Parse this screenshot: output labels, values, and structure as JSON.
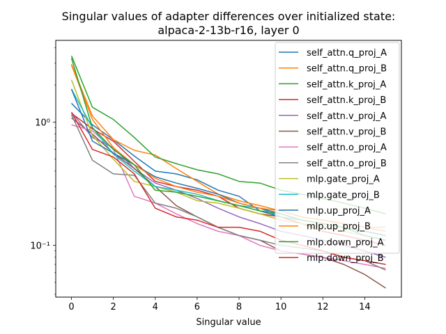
{
  "chart_data": {
    "type": "line",
    "title": "Singular values of adapter differences over initialized state:",
    "subtitle": "alpaca-2-13b-r16, layer 0",
    "xlabel": "Singular value",
    "ylabel": "",
    "xlim": [
      -0.75,
      15.75
    ],
    "ylim": [
      0.038,
      4.6
    ],
    "yscale": "log",
    "x_ticks": [
      0,
      2,
      4,
      6,
      8,
      10,
      12,
      14
    ],
    "x_tick_labels": [
      "0",
      "2",
      "4",
      "6",
      "8",
      "10",
      "12",
      "14"
    ],
    "y_ticks": [
      0.1,
      1
    ],
    "y_tick_labels": [
      "10⁻¹",
      "10⁰"
    ],
    "legend_position": "top-right",
    "x": [
      0,
      1,
      2,
      3,
      4,
      5,
      6,
      7,
      8,
      9,
      10,
      11,
      12,
      13,
      14,
      15
    ],
    "series": [
      {
        "name": "self_attn.q_proj_A",
        "color": "#1f77b4",
        "values": [
          1.42,
          0.95,
          0.72,
          0.53,
          0.4,
          0.38,
          0.34,
          0.28,
          0.25,
          0.19,
          0.17,
          0.16,
          0.15,
          0.14,
          0.13,
          0.12
        ]
      },
      {
        "name": "self_attn.q_proj_B",
        "color": "#ff7f0e",
        "values": [
          2.95,
          1.12,
          0.72,
          0.59,
          0.54,
          0.42,
          0.33,
          0.26,
          0.23,
          0.21,
          0.19,
          0.17,
          0.16,
          0.15,
          0.14,
          0.14
        ]
      },
      {
        "name": "self_attn.k_proj_A",
        "color": "#2ca02c",
        "values": [
          3.45,
          1.32,
          1.05,
          0.75,
          0.52,
          0.46,
          0.41,
          0.38,
          0.33,
          0.32,
          0.28,
          0.26,
          0.24,
          0.22,
          0.2,
          0.18
        ]
      },
      {
        "name": "self_attn.k_proj_B",
        "color": "#d62728",
        "values": [
          1.18,
          0.88,
          0.7,
          0.48,
          0.33,
          0.3,
          0.28,
          0.25,
          0.2,
          0.18,
          0.17,
          0.15,
          0.13,
          0.12,
          0.11,
          0.1
        ]
      },
      {
        "name": "self_attn.v_proj_A",
        "color": "#9467bd",
        "values": [
          1.2,
          0.75,
          0.62,
          0.42,
          0.32,
          0.28,
          0.24,
          0.2,
          0.17,
          0.15,
          0.13,
          0.12,
          0.11,
          0.1,
          0.09,
          0.08
        ]
      },
      {
        "name": "self_attn.v_proj_B",
        "color": "#8c564b",
        "values": [
          1.08,
          0.8,
          0.56,
          0.42,
          0.3,
          0.21,
          0.17,
          0.14,
          0.12,
          0.11,
          0.09,
          0.085,
          0.08,
          0.07,
          0.058,
          0.045
        ]
      },
      {
        "name": "self_attn.o_proj_A",
        "color": "#e377c2",
        "values": [
          0.95,
          0.85,
          0.6,
          0.25,
          0.22,
          0.18,
          0.15,
          0.13,
          0.12,
          0.1,
          0.09,
          0.085,
          0.08,
          0.075,
          0.07,
          0.065
        ]
      },
      {
        "name": "self_attn.o_proj_B",
        "color": "#7f7f7f",
        "values": [
          1.15,
          0.49,
          0.38,
          0.37,
          0.22,
          0.2,
          0.17,
          0.14,
          0.12,
          0.11,
          0.1,
          0.095,
          0.09,
          0.08,
          0.075,
          0.063
        ]
      },
      {
        "name": "mlp.gate_proj_A",
        "color": "#bcbd22",
        "values": [
          2.2,
          0.78,
          0.5,
          0.33,
          0.3,
          0.27,
          0.23,
          0.22,
          0.2,
          0.18,
          0.16,
          0.15,
          0.14,
          0.13,
          0.12,
          0.11
        ]
      },
      {
        "name": "mlp.gate_proj_B",
        "color": "#17becf",
        "values": [
          1.85,
          0.9,
          0.55,
          0.4,
          0.3,
          0.28,
          0.26,
          0.23,
          0.21,
          0.2,
          0.17,
          0.16,
          0.15,
          0.14,
          0.12,
          0.11
        ]
      },
      {
        "name": "mlp.up_proj_A",
        "color": "#1f77b4",
        "values": [
          1.85,
          0.7,
          0.56,
          0.45,
          0.36,
          0.32,
          0.29,
          0.26,
          0.22,
          0.2,
          0.18,
          0.16,
          0.15,
          0.14,
          0.13,
          0.12
        ]
      },
      {
        "name": "mlp.up_proj_B",
        "color": "#ff7f0e",
        "values": [
          2.9,
          1.05,
          0.62,
          0.45,
          0.35,
          0.3,
          0.27,
          0.25,
          0.22,
          0.2,
          0.19,
          0.17,
          0.16,
          0.15,
          0.14,
          0.13
        ]
      },
      {
        "name": "mlp.down_proj_A",
        "color": "#2ca02c",
        "values": [
          3.3,
          0.9,
          0.6,
          0.45,
          0.28,
          0.27,
          0.25,
          0.23,
          0.21,
          0.19,
          0.18,
          0.16,
          0.15,
          0.14,
          0.12,
          0.11
        ]
      },
      {
        "name": "mlp.down_proj_B",
        "color": "#d62728",
        "values": [
          1.2,
          0.6,
          0.52,
          0.38,
          0.2,
          0.17,
          0.16,
          0.14,
          0.14,
          0.13,
          0.11,
          0.1,
          0.09,
          0.08,
          0.075,
          0.07
        ]
      }
    ]
  }
}
